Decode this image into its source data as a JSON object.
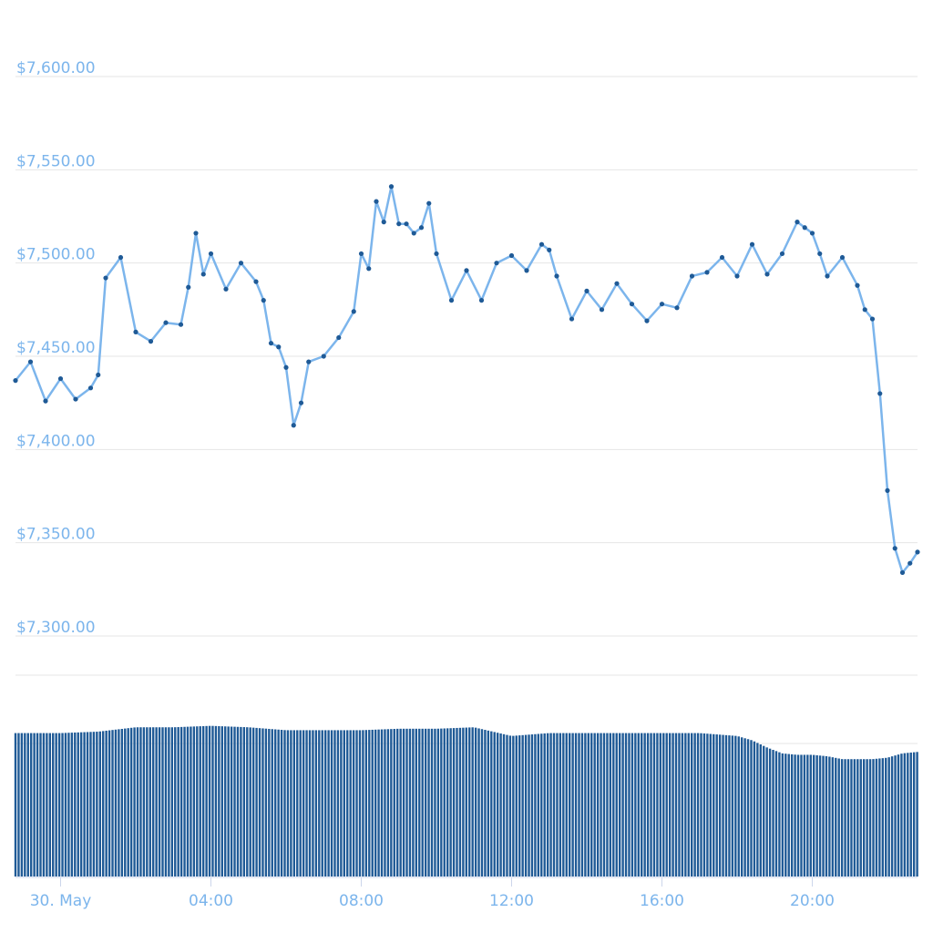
{
  "chart_data": [
    {
      "type": "line",
      "title": "",
      "xlabel": "",
      "ylabel": "",
      "x_unit": "hours since 30 May 00:00",
      "xlim": [
        -1.2,
        22.8
      ],
      "ylim": [
        7300,
        7600
      ],
      "y_ticks": [
        7300,
        7350,
        7400,
        7450,
        7500,
        7550,
        7600
      ],
      "y_tick_labels": [
        "$7,300.00",
        "$7,350.00",
        "$7,400.00",
        "$7,450.00",
        "$7,500.00",
        "$7,550.00",
        "$7,600.00"
      ],
      "x_ticks": [
        0,
        4,
        8,
        12,
        16,
        20
      ],
      "x_tick_labels": [
        "30. May",
        "04:00",
        "08:00",
        "12:00",
        "16:00",
        "20:00"
      ],
      "grid": true,
      "colors": {
        "line": "#7cb5ec",
        "marker": "#1f5a96",
        "grid": "#e6e6e6",
        "tick_text": "#7cb5ec"
      },
      "series": [
        {
          "x": [
            -1.2,
            -0.8,
            -0.4,
            0.0,
            0.4,
            0.8,
            1.0,
            1.2,
            1.6,
            2.0,
            2.4,
            2.8,
            3.2,
            3.4,
            3.6,
            3.8,
            4.0,
            4.4,
            4.8,
            5.2,
            5.4,
            5.6,
            5.8,
            6.0,
            6.2,
            6.4,
            6.6,
            7.0,
            7.4,
            7.8,
            8.0,
            8.2,
            8.4,
            8.6,
            8.8,
            9.0,
            9.2,
            9.4,
            9.6,
            9.8,
            10.0,
            10.4,
            10.8,
            11.2,
            11.6,
            12.0,
            12.4,
            12.8,
            13.0,
            13.2,
            13.6,
            14.0,
            14.4,
            14.8,
            15.2,
            15.6,
            16.0,
            16.4,
            16.8,
            17.2,
            17.6,
            18.0,
            18.4,
            18.8,
            19.2,
            19.6,
            19.8,
            20.0,
            20.2,
            20.4,
            20.8,
            21.2,
            21.4,
            21.6,
            21.8,
            22.0,
            22.2,
            22.4,
            22.6,
            22.8
          ],
          "y": [
            7437,
            7447,
            7426,
            7438,
            7427,
            7433,
            7440,
            7492,
            7503,
            7463,
            7458,
            7468,
            7467,
            7487,
            7516,
            7494,
            7505,
            7486,
            7500,
            7490,
            7480,
            7457,
            7455,
            7444,
            7413,
            7425,
            7447,
            7450,
            7460,
            7474,
            7505,
            7497,
            7533,
            7522,
            7541,
            7521,
            7521,
            7516,
            7519,
            7532,
            7505,
            7480,
            7496,
            7480,
            7500,
            7504,
            7496,
            7510,
            7507,
            7493,
            7470,
            7485,
            7475,
            7489,
            7478,
            7469,
            7478,
            7476,
            7493,
            7495,
            7503,
            7493,
            7510,
            7494,
            7505,
            7522,
            7519,
            7516,
            7505,
            7493,
            7503,
            7488,
            7475,
            7470,
            7430,
            7378,
            7347,
            7334,
            7339,
            7345
          ]
        }
      ]
    },
    {
      "type": "bar",
      "title": "",
      "xlabel": "",
      "ylabel": "",
      "x_unit": "hours since 30 May 00:00",
      "xlim": [
        -1.2,
        22.8
      ],
      "ylim": [
        0,
        100
      ],
      "value_unit": "relative volume (0-100, no axis labels shown)",
      "colors": {
        "bar": "#1f5a96"
      },
      "x": [
        -1.2,
        0.0,
        1.0,
        2.0,
        3.0,
        4.0,
        5.0,
        6.0,
        7.0,
        8.0,
        9.0,
        10.0,
        11.0,
        12.0,
        13.0,
        14.0,
        15.0,
        16.0,
        17.0,
        18.0,
        18.4,
        18.8,
        19.2,
        19.6,
        20.0,
        20.4,
        20.8,
        21.2,
        21.6,
        22.0,
        22.4,
        22.8
      ],
      "values": [
        99,
        99,
        100,
        103,
        103,
        104,
        103,
        101,
        101,
        101,
        102,
        102,
        103,
        97,
        99,
        99,
        99,
        99,
        99,
        97,
        94,
        89,
        85,
        84,
        84,
        83,
        81,
        81,
        81,
        82,
        85,
        86
      ]
    }
  ]
}
